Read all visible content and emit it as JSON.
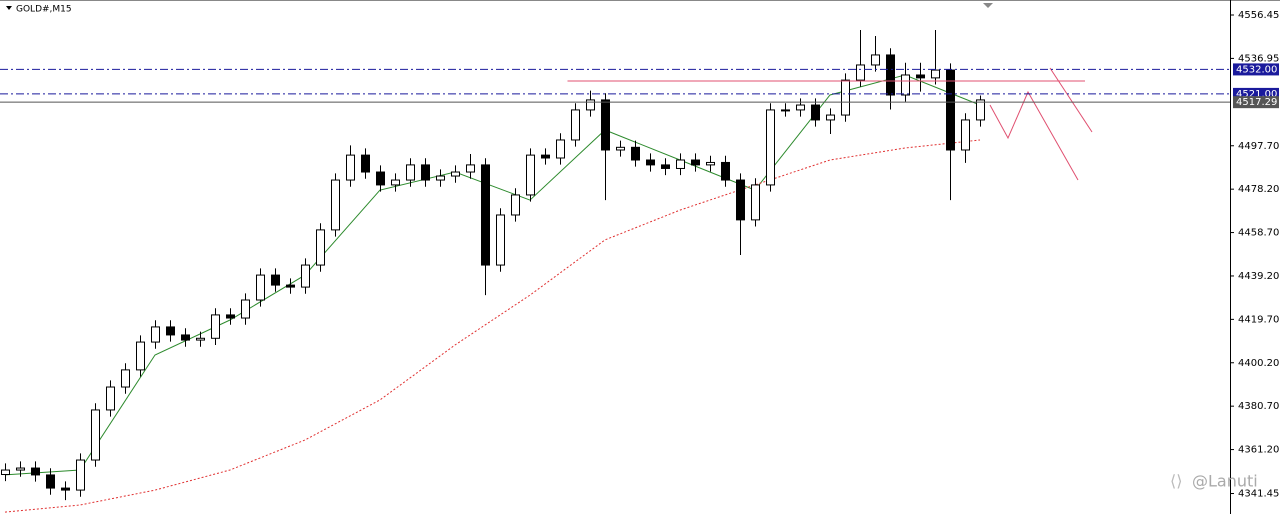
{
  "chart_data": {
    "type": "candlestick",
    "title": "GOLD#,M15",
    "watermark": "@Lanuti",
    "open": [
      4350.0,
      4352.0,
      4352.9,
      4349.8,
      4343.9,
      4343.0,
      4356.5,
      4379.0,
      4389.3,
      4397.0,
      4409.5,
      4416.3,
      4412.7,
      4410.4,
      4411.2,
      4421.7,
      4420.3,
      4428.4,
      4439.6,
      4435.1,
      4434.2,
      4444.1,
      4459.9,
      4482.3,
      4493.5,
      4485.9,
      4480.1,
      4482.3,
      4489.1,
      4482.3,
      4484.1,
      4485.9,
      4489.1,
      4444.1,
      4466.6,
      4475.6,
      4493.5,
      4492.2,
      4500.3,
      4513.8,
      4518.3,
      4495.8,
      4497.0,
      4491.3,
      4489.1,
      4487.5,
      4491.3,
      4489.1,
      4490.2,
      4482.3,
      4464.4,
      4480.1,
      4513.8,
      4513.8,
      4516.0,
      4509.3,
      4511.5,
      4527.2,
      4534.0,
      4538.5,
      4520.5,
      4529.5,
      4528.2,
      4531.7,
      4495.8,
      4509.3
    ],
    "high": [
      4355.0,
      4355.9,
      4355.9,
      4352.8,
      4346.9,
      4359.5,
      4382.0,
      4392.3,
      4400.0,
      4412.5,
      4419.3,
      4419.3,
      4415.7,
      4414.2,
      4424.7,
      4424.7,
      4431.4,
      4442.6,
      4442.6,
      4438.1,
      4447.1,
      4462.9,
      4485.3,
      4497.9,
      4496.5,
      4488.9,
      4485.3,
      4492.1,
      4492.1,
      4487.1,
      4488.9,
      4494.0,
      4492.1,
      4469.6,
      4478.6,
      4496.5,
      4496.5,
      4503.3,
      4516.8,
      4522.5,
      4521.3,
      4500.0,
      4500.0,
      4494.3,
      4492.1,
      4494.3,
      4494.3,
      4493.2,
      4493.2,
      4485.3,
      4483.1,
      4516.8,
      4516.8,
      4519.0,
      4519.0,
      4514.5,
      4530.2,
      4549.7,
      4547.0,
      4541.5,
      4535.0,
      4535.0,
      4549.7,
      4534.7,
      4512.3,
      4520.3
    ],
    "low": [
      4347.0,
      4349.0,
      4346.8,
      4340.9,
      4338.5,
      4340.0,
      4353.5,
      4376.0,
      4386.3,
      4394.0,
      4406.5,
      4409.7,
      4407.4,
      4407.4,
      4408.2,
      4417.3,
      4417.3,
      4425.4,
      4432.1,
      4431.2,
      4431.2,
      4441.1,
      4456.9,
      4479.3,
      4482.9,
      4477.1,
      4477.1,
      4479.3,
      4479.3,
      4479.3,
      4481.1,
      4482.9,
      4430.6,
      4441.1,
      4463.6,
      4472.6,
      4489.2,
      4489.2,
      4497.3,
      4510.8,
      4473.3,
      4492.8,
      4488.3,
      4486.1,
      4484.5,
      4484.5,
      4486.1,
      4486.1,
      4479.3,
      4448.6,
      4461.4,
      4477.1,
      4510.8,
      4510.8,
      4506.3,
      4503.0,
      4508.5,
      4524.2,
      4531.0,
      4514.0,
      4517.5,
      4522.0,
      4525.2,
      4473.3,
      4490.0,
      4506.3
    ],
    "close": [
      4352.0,
      4352.9,
      4349.8,
      4343.9,
      4343.0,
      4356.5,
      4379.0,
      4389.3,
      4397.0,
      4409.5,
      4416.3,
      4412.7,
      4410.4,
      4411.2,
      4421.7,
      4420.3,
      4428.4,
      4439.6,
      4435.1,
      4434.2,
      4444.1,
      4459.9,
      4482.3,
      4493.5,
      4485.9,
      4480.1,
      4482.3,
      4489.1,
      4482.3,
      4484.1,
      4485.9,
      4489.1,
      4444.1,
      4466.6,
      4475.6,
      4493.5,
      4492.2,
      4500.3,
      4513.8,
      4518.3,
      4495.8,
      4497.0,
      4491.3,
      4489.1,
      4487.5,
      4491.3,
      4489.1,
      4490.2,
      4482.3,
      4464.4,
      4480.1,
      4513.8,
      4513.8,
      4516.0,
      4509.3,
      4511.5,
      4527.2,
      4534.0,
      4538.5,
      4520.5,
      4529.5,
      4528.2,
      4531.7,
      4495.8,
      4509.3,
      4518.3
    ],
    "up_color": "#ffffff",
    "down_color": "#000000",
    "ylim": [
      4332.25,
      4563.19
    ],
    "yticks": [
      4556.45,
      4536.95,
      {
        "value": 4497.7,
        "label": "4497.70"
      },
      {
        "value": 4478.2,
        "label": "4478.20"
      },
      {
        "value": 4458.7,
        "label": "4458.70"
      },
      {
        "value": 4439.2,
        "label": "4439.20"
      },
      {
        "value": 4419.7,
        "label": "4419.70"
      },
      {
        "value": 4400.2,
        "label": "4400.20"
      },
      {
        "value": 4380.7,
        "label": "4380.70"
      },
      {
        "value": 4361.2,
        "label": "4361.20"
      },
      4341.45
    ],
    "overlays": [
      {
        "style": "solid",
        "color": "#2e8b2e",
        "x": [
          0,
          5,
          10,
          15,
          20,
          25,
          30,
          35,
          40,
          45,
          50,
          55,
          60,
          65
        ],
        "values": [
          4349.8,
          4352.0,
          4403.7,
          4419.4,
          4439.6,
          4477.8,
          4485.9,
          4473.3,
          4504.8,
          4491.3,
          4477.8,
          4520.5,
          4529.5,
          4516.0
        ]
      },
      {
        "style": "dotted",
        "color": "#e03030",
        "x": [
          0,
          5,
          10,
          15,
          20,
          25,
          30,
          35,
          40,
          45,
          50,
          55,
          60,
          65
        ],
        "values": [
          4333.1,
          4336.3,
          4343.0,
          4352.0,
          4365.5,
          4383.5,
          4408.2,
          4430.6,
          4455.4,
          4468.8,
          4480.1,
          4491.3,
          4496.7,
          4500.3
        ]
      }
    ],
    "levels": [
      {
        "value": 4532,
        "label": "4532.00",
        "color": "#1a1a9c",
        "style": "dashdot"
      },
      {
        "value": 4521,
        "label": "4521.00",
        "color": "#1a1a9c",
        "style": "dashdot"
      },
      {
        "value": 4517.29,
        "label": "4517.29",
        "color": "#555555",
        "style": "solid"
      },
      {
        "value": 4526.8,
        "color": "#e05070",
        "style": "solid",
        "x": [
          37.5,
          72
        ]
      }
    ],
    "grid": false
  }
}
